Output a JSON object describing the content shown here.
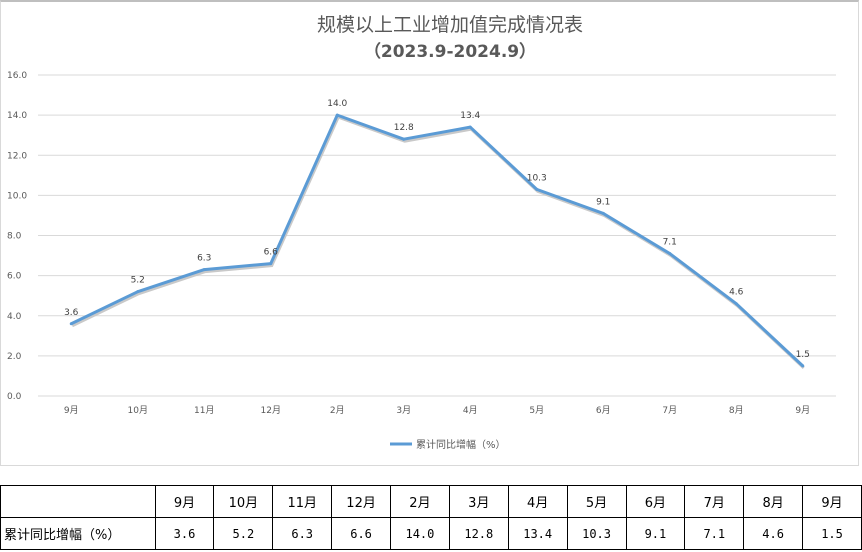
{
  "chart_data": {
    "type": "line",
    "title": "规模以上工业增加值完成情况表",
    "subtitle": "（2023.9-2024.9）",
    "categories": [
      "9月",
      "10月",
      "11月",
      "12月",
      "2月",
      "3月",
      "4月",
      "5月",
      "6月",
      "7月",
      "8月",
      "9月"
    ],
    "series": [
      {
        "name": "累计同比增幅（%）",
        "values": [
          3.6,
          5.2,
          6.3,
          6.6,
          14.0,
          12.8,
          13.4,
          10.3,
          9.1,
          7.1,
          4.6,
          1.5
        ],
        "color": "#5b9bd5"
      }
    ],
    "ylim": [
      0,
      16
    ],
    "yticks": [
      "0.0",
      "2.0",
      "4.0",
      "6.0",
      "8.0",
      "10.0",
      "12.0",
      "14.0",
      "16.0"
    ],
    "grid": true,
    "legend": "bottom",
    "data_labels": true
  },
  "table": {
    "row_label": "累计同比增幅（%）",
    "headers": [
      "9月",
      "10月",
      "11月",
      "12月",
      "2月",
      "3月",
      "4月",
      "5月",
      "6月",
      "7月",
      "8月",
      "9月"
    ],
    "values": [
      "3.6",
      "5.2",
      "6.3",
      "6.6",
      "14.0",
      "12.8",
      "13.4",
      "10.3",
      "9.1",
      "7.1",
      "4.6",
      "1.5"
    ]
  }
}
